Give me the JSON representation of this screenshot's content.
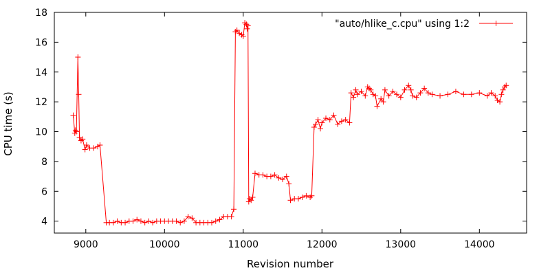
{
  "chart_data": {
    "type": "line",
    "title": "",
    "xlabel": "Revision number",
    "ylabel": "CPU time (s)",
    "xlim": [
      8600,
      14600
    ],
    "ylim": [
      3.2,
      18
    ],
    "xticks": [
      9000,
      10000,
      11000,
      12000,
      13000,
      14000
    ],
    "yticks": [
      4,
      6,
      8,
      10,
      12,
      14,
      16,
      18
    ],
    "grid": false,
    "legend": {
      "placement": "top-right"
    },
    "marker": "plus",
    "color": "#ff0000",
    "series": [
      {
        "name": "\"auto/hlike_c.cpu\" using 1:2",
        "x": [
          8840,
          8860,
          8870,
          8880,
          8900,
          8910,
          8920,
          8940,
          8960,
          8990,
          9010,
          9050,
          9100,
          9150,
          9180,
          9260,
          9300,
          9350,
          9400,
          9450,
          9500,
          9550,
          9600,
          9650,
          9700,
          9750,
          9800,
          9850,
          9900,
          9950,
          10000,
          10050,
          10100,
          10150,
          10200,
          10250,
          10300,
          10350,
          10400,
          10450,
          10500,
          10550,
          10600,
          10650,
          10700,
          10750,
          10800,
          10850,
          10880,
          10900,
          10920,
          10950,
          10980,
          11000,
          11020,
          11040,
          11050,
          11060,
          11070,
          11080,
          11100,
          11120,
          11150,
          11200,
          11250,
          11300,
          11350,
          11400,
          11450,
          11500,
          11550,
          11580,
          11600,
          11650,
          11700,
          11750,
          11800,
          11850,
          11870,
          11900,
          11920,
          11950,
          11980,
          12000,
          12050,
          12100,
          12150,
          12200,
          12250,
          12300,
          12350,
          12370,
          12400,
          12430,
          12450,
          12500,
          12550,
          12580,
          12600,
          12620,
          12650,
          12680,
          12700,
          12750,
          12780,
          12800,
          12850,
          12900,
          12950,
          13000,
          13050,
          13100,
          13130,
          13150,
          13200,
          13250,
          13300,
          13350,
          13400,
          13500,
          13600,
          13700,
          13800,
          13900,
          14000,
          14100,
          14150,
          14200,
          14230,
          14260,
          14280,
          14300,
          14320,
          14340
        ],
        "y": [
          11.1,
          9.9,
          10.1,
          10.0,
          15.0,
          12.5,
          9.6,
          9.4,
          9.5,
          8.8,
          9.1,
          8.9,
          8.9,
          9.0,
          9.1,
          3.9,
          3.9,
          3.9,
          4.0,
          3.9,
          3.9,
          4.0,
          4.0,
          4.1,
          4.0,
          3.9,
          4.0,
          3.9,
          4.0,
          4.0,
          4.0,
          4.0,
          4.0,
          4.0,
          3.9,
          4.0,
          4.3,
          4.2,
          3.9,
          3.9,
          3.9,
          3.9,
          3.9,
          4.0,
          4.1,
          4.3,
          4.3,
          4.3,
          4.8,
          16.7,
          16.8,
          16.6,
          16.5,
          16.4,
          17.3,
          17.2,
          16.9,
          17.1,
          5.3,
          5.5,
          5.4,
          5.6,
          7.2,
          7.1,
          7.1,
          7.0,
          7.0,
          7.1,
          6.9,
          6.8,
          7.0,
          6.5,
          5.4,
          5.5,
          5.5,
          5.6,
          5.7,
          5.6,
          5.7,
          10.3,
          10.5,
          10.8,
          10.2,
          10.6,
          10.9,
          10.8,
          11.1,
          10.5,
          10.7,
          10.8,
          10.6,
          12.6,
          12.3,
          12.8,
          12.5,
          12.7,
          12.4,
          13.0,
          12.9,
          12.8,
          12.5,
          12.4,
          11.7,
          12.2,
          12.0,
          12.8,
          12.4,
          12.7,
          12.5,
          12.3,
          12.8,
          13.1,
          12.8,
          12.4,
          12.3,
          12.6,
          12.9,
          12.6,
          12.5,
          12.4,
          12.5,
          12.7,
          12.5,
          12.5,
          12.6,
          12.4,
          12.6,
          12.4,
          12.1,
          12.0,
          12.5,
          12.8,
          13.0,
          13.1
        ]
      }
    ]
  }
}
